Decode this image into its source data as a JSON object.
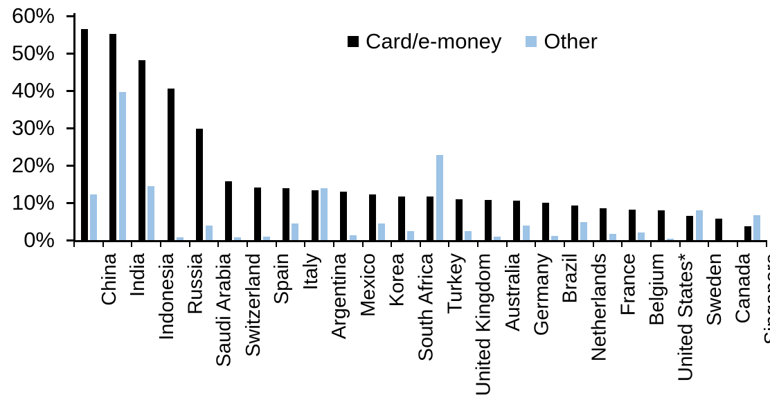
{
  "chart_data": {
    "type": "bar",
    "title": "",
    "categories": [
      "China",
      "India",
      "Indonesia",
      "Russia",
      "Saudi Arabia",
      "Switzerland",
      "Spain",
      "Italy",
      "Argentina",
      "Mexico",
      "Korea",
      "South Africa",
      "Turkey",
      "United Kingdom",
      "Australia",
      "Germany",
      "Brazil",
      "Netherlands",
      "France",
      "Belgium",
      "United States*",
      "Sweden",
      "Canada",
      "Singapore"
    ],
    "series": [
      {
        "name": "Card/e-money",
        "color": "#000000",
        "values": [
          56.4,
          55.2,
          48.2,
          40.5,
          29.8,
          15.7,
          14.1,
          13.9,
          13.4,
          13.0,
          12.2,
          11.7,
          11.6,
          11.0,
          10.8,
          10.5,
          10.0,
          9.2,
          8.5,
          8.1,
          7.9,
          6.4,
          5.7,
          3.7
        ]
      },
      {
        "name": "Other",
        "color": "#9DC3E6",
        "values": [
          12.3,
          39.6,
          14.4,
          0.8,
          3.9,
          0.7,
          1.0,
          4.4,
          13.8,
          1.3,
          4.5,
          2.4,
          22.7,
          2.4,
          0.9,
          3.9,
          1.1,
          4.8,
          1.6,
          2.0,
          0.4,
          8.0,
          0,
          6.7
        ]
      }
    ],
    "xlabel": "",
    "ylabel": "",
    "ylim": [
      0,
      60
    ],
    "yticks": [
      {
        "value": 0,
        "label": "0%"
      },
      {
        "value": 10,
        "label": "10%"
      },
      {
        "value": 20,
        "label": "20%"
      },
      {
        "value": 30,
        "label": "30%"
      },
      {
        "value": 40,
        "label": "40%"
      },
      {
        "value": 50,
        "label": "50%"
      },
      {
        "value": 60,
        "label": "60%"
      }
    ],
    "grid": false,
    "legend_position": "top-center",
    "bar_color_black": "#000000",
    "bar_color_blue": "#9DC3E6"
  }
}
